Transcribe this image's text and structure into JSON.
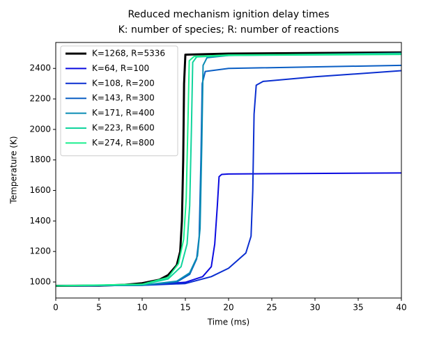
{
  "chart_data": {
    "type": "line",
    "title": "Reduced mechanism ignition delay times",
    "subtitle": "K: number of species; R: number of reactions",
    "x_label": "Time (ms)",
    "y_label": "Temperature (K)",
    "xlim": [
      0,
      40
    ],
    "ylim": [
      895,
      2570
    ],
    "xticks": [
      0,
      5,
      10,
      15,
      20,
      25,
      30,
      35,
      40
    ],
    "yticks": [
      1000,
      1200,
      1400,
      1600,
      1800,
      2000,
      2200,
      2400
    ],
    "grid": false,
    "legend": "upper left",
    "series": [
      {
        "name": "K=1268, R=5336",
        "color": "#000000",
        "width": 3,
        "x": [
          0,
          5,
          8,
          10,
          12,
          13,
          14,
          14.4,
          14.6,
          14.75,
          14.85,
          15,
          20,
          40
        ],
        "values": [
          975,
          976,
          982,
          992,
          1015,
          1045,
          1110,
          1200,
          1400,
          1800,
          2300,
          2490,
          2497,
          2505
        ]
      },
      {
        "name": "K=64, R=100",
        "color": "#0b0be0",
        "width": 2,
        "x": [
          0,
          10,
          15,
          17,
          18,
          18.4,
          18.7,
          18.9,
          19.2,
          20,
          40
        ],
        "values": [
          975,
          978,
          998,
          1035,
          1100,
          1250,
          1500,
          1690,
          1705,
          1708,
          1715
        ]
      },
      {
        "name": "K=108, R=200",
        "color": "#0a2ed0",
        "width": 2,
        "x": [
          0,
          10,
          15,
          18,
          20,
          22,
          22.6,
          22.8,
          22.95,
          23.2,
          24,
          30,
          40
        ],
        "values": [
          975,
          978,
          990,
          1035,
          1090,
          1190,
          1300,
          1600,
          2100,
          2290,
          2315,
          2345,
          2385
        ]
      },
      {
        "name": "K=143, R=300",
        "color": "#0a5ec4",
        "width": 2,
        "x": [
          0,
          10,
          14,
          15.5,
          16.3,
          16.6,
          16.8,
          16.95,
          17.3,
          20,
          40
        ],
        "values": [
          975,
          979,
          1000,
          1050,
          1150,
          1300,
          1800,
          2300,
          2380,
          2400,
          2420
        ]
      },
      {
        "name": "K=171, R=400",
        "color": "#0a8cb4",
        "width": 2,
        "x": [
          0,
          10,
          14,
          15.5,
          16.4,
          16.7,
          16.9,
          17.05,
          17.5,
          20,
          40
        ],
        "values": [
          975,
          979,
          1005,
          1060,
          1170,
          1350,
          1900,
          2420,
          2470,
          2485,
          2500
        ]
      },
      {
        "name": "K=223, R=600",
        "color": "#10d49c",
        "width": 2,
        "x": [
          0,
          10,
          13,
          14.5,
          15.2,
          15.5,
          15.7,
          15.85,
          16.3,
          20,
          40
        ],
        "values": [
          975,
          983,
          1020,
          1100,
          1250,
          1500,
          2000,
          2440,
          2475,
          2485,
          2492
        ]
      },
      {
        "name": "K=274, R=800",
        "color": "#1aef8e",
        "width": 2,
        "x": [
          0,
          10,
          13,
          14.2,
          14.8,
          15.1,
          15.3,
          15.45,
          16,
          20,
          40
        ],
        "values": [
          975,
          985,
          1030,
          1120,
          1280,
          1550,
          2050,
          2450,
          2478,
          2488,
          2495
        ]
      }
    ]
  }
}
